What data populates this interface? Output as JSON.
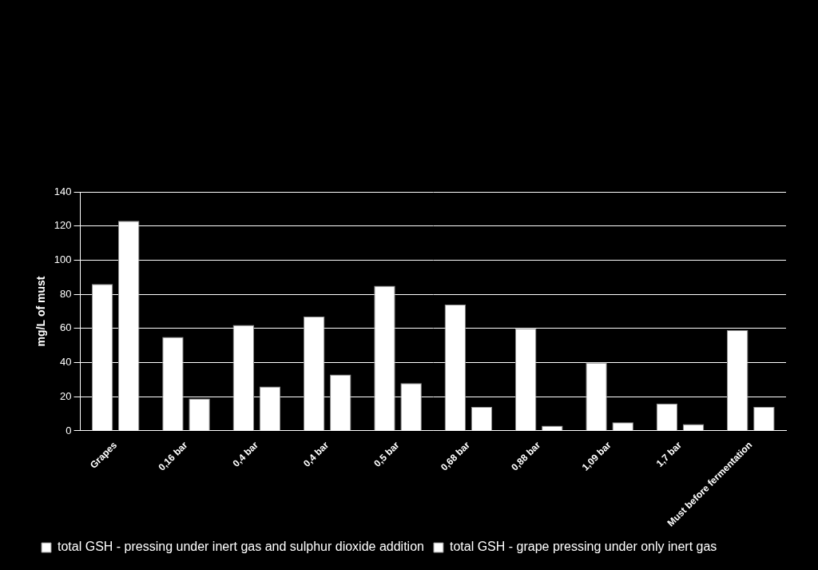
{
  "chart_data": {
    "type": "bar",
    "y_label": "mg/L of must",
    "categories": [
      "Grapes",
      "0,16 bar",
      "0,4 bar",
      "0,4 bar",
      "0,5 bar",
      "0,68 bar",
      "0,88 bar",
      "1,09 bar",
      "1,7 bar",
      "Must before fermentation"
    ],
    "series": [
      {
        "name": "total GSH - pressing under inert gas and sulphur dioxide addition",
        "color": "#ffffff",
        "values": [
          86,
          55,
          62,
          67,
          85,
          74,
          60,
          40,
          16,
          59
        ]
      },
      {
        "name": "total GSH - grape pressing under only inert gas",
        "color": "#ffffff",
        "values": [
          123,
          19,
          26,
          33,
          28,
          14,
          3,
          5,
          4,
          14
        ]
      }
    ],
    "ylim": [
      0,
      140
    ],
    "yticks": [
      0,
      20,
      40,
      60,
      80,
      100,
      120,
      140
    ],
    "grid": true,
    "legend": "bottom"
  }
}
